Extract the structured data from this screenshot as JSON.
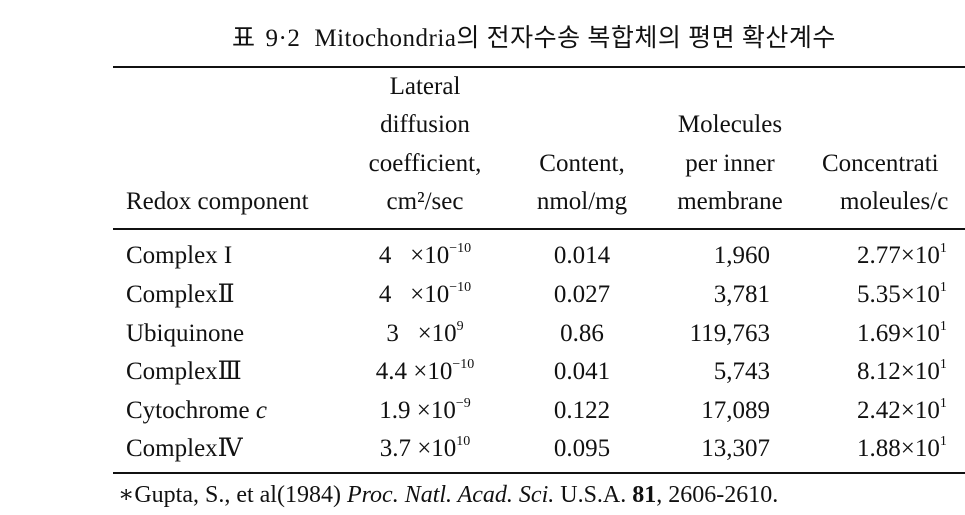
{
  "title": {
    "prefix": "표",
    "number": "9·2",
    "text": "Mitochondria의 전자수송 복합체의 평면 확산계수"
  },
  "headers": {
    "col1": [
      "Redox component"
    ],
    "col2": [
      "Lateral",
      "diffusion",
      "coefficient,",
      "cm²/sec"
    ],
    "col3": [
      "Content,",
      "nmol/mg"
    ],
    "col4": [
      "Molecules",
      "per inner",
      "membrane"
    ],
    "col5": [
      "Concentrati",
      "moleules/c"
    ]
  },
  "rows": [
    {
      "name": "Complex I",
      "dcoef": "4",
      "dexp_base": "×10",
      "dexp": "−10",
      "content": "0.014",
      "molecules": "1,960",
      "conc": "2.77×10",
      "conc_sup": "1"
    },
    {
      "name": "ComplexⅡ",
      "dcoef": "4",
      "dexp_base": "×10",
      "dexp": "−10",
      "content": "0.027",
      "molecules": "3,781",
      "conc": "5.35×10",
      "conc_sup": "1"
    },
    {
      "name": "Ubiquinone",
      "dcoef": "3",
      "dexp_base": "×10",
      "dexp": "9",
      "content": "0.86",
      "molecules": "119,763",
      "conc": "1.69×10",
      "conc_sup": "1"
    },
    {
      "name": "ComplexⅢ",
      "dcoef": "4.4",
      "dexp_base": "×10",
      "dexp": "−10",
      "content": "0.041",
      "molecules": "5,743",
      "conc": "8.12×10",
      "conc_sup": "1"
    },
    {
      "name_main": "Cytochrome",
      "name_italic": "c",
      "dcoef": "1.9",
      "dexp_base": "×10",
      "dexp": "−9",
      "content": "0.122",
      "molecules": "17,089",
      "conc": "2.42×10",
      "conc_sup": "1"
    },
    {
      "name": "ComplexⅣ",
      "dcoef": "3.7",
      "dexp_base": "×10",
      "dexp": "10",
      "content": "0.095",
      "molecules": "13,307",
      "conc": "1.88×10",
      "conc_sup": "1"
    }
  ],
  "footnote": {
    "marker": "∗",
    "authors": "Gupta, S., et al(1984)",
    "journal": "Proc. Natl. Acad. Sci.",
    "country": "U.S.A.",
    "volume": "81",
    "pages": ", 2606-2610."
  }
}
